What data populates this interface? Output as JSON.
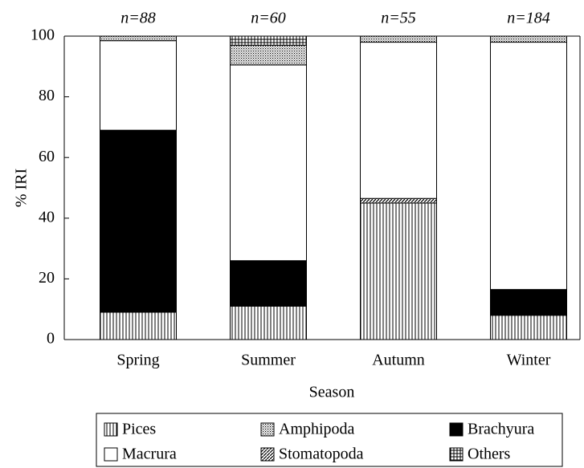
{
  "chart_data": {
    "type": "stacked_bar",
    "categories": [
      "Spring",
      "Summer",
      "Autumn",
      "Winter"
    ],
    "annotations": [
      "n=88",
      "n=60",
      "n=55",
      "n=184"
    ],
    "series": [
      {
        "name": "Pices",
        "values": [
          9,
          11,
          45,
          8
        ]
      },
      {
        "name": "Brachyura",
        "values": [
          60,
          15,
          0,
          8.5
        ]
      },
      {
        "name": "Stomatopoda",
        "values": [
          0,
          0,
          1.5,
          0
        ]
      },
      {
        "name": "Macrura",
        "values": [
          29.5,
          64.5,
          51.5,
          81.5
        ]
      },
      {
        "name": "Amphipoda",
        "values": [
          1.5,
          6.5,
          2,
          2
        ]
      },
      {
        "name": "Others",
        "values": [
          0,
          3,
          0,
          0
        ]
      }
    ],
    "ylabel": "% IRI",
    "xlabel": "Season",
    "ylim": [
      0,
      100
    ],
    "yticks": [
      0,
      20,
      40,
      60,
      80,
      100
    ]
  }
}
